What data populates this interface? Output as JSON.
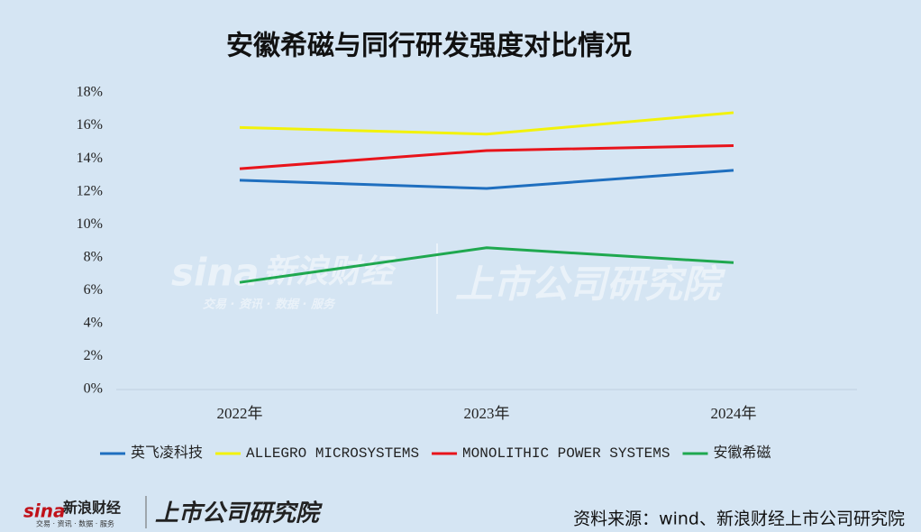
{
  "chart_data": {
    "type": "line",
    "title": "安徽希磁与同行研发强度对比情况",
    "categories": [
      "2022年",
      "2023年",
      "2024年"
    ],
    "series": [
      {
        "name": "英飞凌科技",
        "color": "#1f6fbf",
        "values": [
          12.7,
          12.2,
          13.3
        ]
      },
      {
        "name": "ALLEGRO MICROSYSTEMS",
        "color": "#f2f20a",
        "values": [
          15.9,
          15.5,
          16.8
        ]
      },
      {
        "name": "MONOLITHIC POWER SYSTEMS",
        "color": "#e8141b",
        "values": [
          13.4,
          14.5,
          14.8
        ]
      },
      {
        "name": "安徽希磁",
        "color": "#1fa84f",
        "values": [
          6.5,
          8.6,
          7.7
        ]
      }
    ],
    "ylim": [
      0,
      18
    ],
    "yticks": [
      {
        "value": 0,
        "label": "0%"
      },
      {
        "value": 2,
        "label": "2%"
      },
      {
        "value": 4,
        "label": "4%"
      },
      {
        "value": 6,
        "label": "6%"
      },
      {
        "value": 8,
        "label": "8%"
      },
      {
        "value": 10,
        "label": "10%"
      },
      {
        "value": 12,
        "label": "12%"
      },
      {
        "value": 14,
        "label": "14%"
      },
      {
        "value": 16,
        "label": "16%"
      },
      {
        "value": 18,
        "label": "18%"
      }
    ],
    "grid": false,
    "legend": "bottom",
    "source": "资料来源：wind、新浪财经上市公司研究院"
  },
  "branding": {
    "logo": "sina",
    "name": "新浪财经",
    "tagline": "交易 · 资讯 · 数据 · 服务",
    "institute": "上市公司研究院"
  }
}
